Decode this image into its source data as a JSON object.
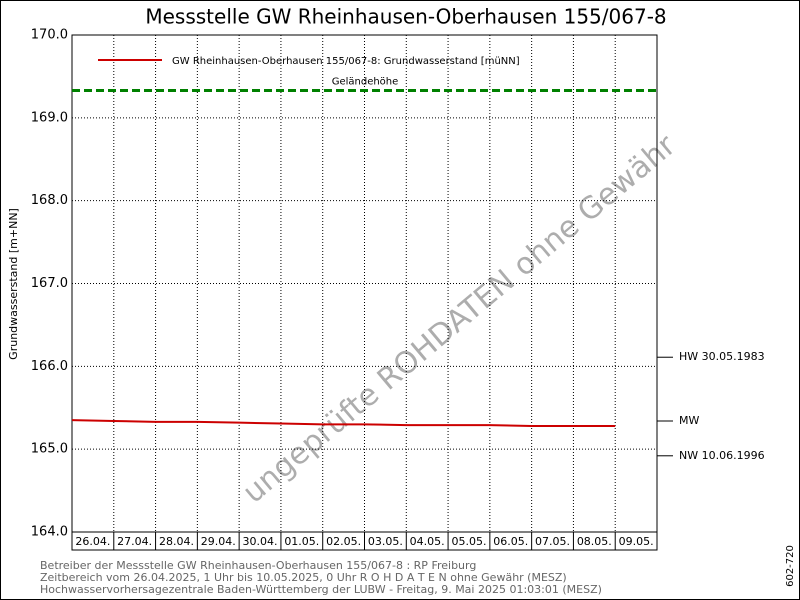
{
  "chart_data": {
    "type": "line",
    "title": "Messstelle GW Rheinhausen-Oberhausen 155/067-8",
    "y_label": "Grundwasserstand [m+NN]",
    "categories": [
      "26.04.",
      "27.04.",
      "28.04.",
      "29.04.",
      "30.04.",
      "01.05.",
      "02.05.",
      "03.05.",
      "04.05.",
      "05.05.",
      "06.05.",
      "07.05.",
      "08.05.",
      "09.05."
    ],
    "series": [
      {
        "name": "GW Rheinhausen-Oberhausen 155/067-8: Grundwasserstand  [müNN]",
        "color": "#cc0000",
        "values": [
          165.35,
          165.34,
          165.33,
          165.33,
          165.32,
          165.31,
          165.3,
          165.3,
          165.29,
          165.29,
          165.29,
          165.28,
          165.28,
          165.28
        ]
      }
    ],
    "reference_line": {
      "label": "Geländehöhe",
      "value": 169.33,
      "color": "#008000"
    },
    "markers": [
      {
        "label": "HW 30.05.1983",
        "value": 166.11
      },
      {
        "label": "MW",
        "value": 165.34
      },
      {
        "label": "NW 10.06.1996",
        "value": 164.92
      }
    ],
    "ylim": [
      164,
      170
    ],
    "yticks": [
      {
        "value": 164,
        "label": "164.0"
      },
      {
        "value": 165,
        "label": "165.0"
      },
      {
        "value": 166,
        "label": "166.0"
      },
      {
        "value": 167,
        "label": "167.0"
      },
      {
        "value": 168,
        "label": "168.0"
      },
      {
        "value": 169,
        "label": "169.0"
      },
      {
        "value": 170,
        "label": "170.0"
      }
    ],
    "grid": true,
    "watermark": "ungeprüfte ROHDATEN ohne Gewähr",
    "footer": [
      "Betreiber der Messstelle GW Rheinhausen-Oberhausen 155/067-8 : RP Freiburg",
      "Zeitbereich vom 26.04.2025, 1 Uhr bis 10.05.2025, 0 Uhr   R O H D A T E N ohne Gewähr (MESZ)",
      "Hochwasservorhersagezentrale Baden-Württemberg der LUBW - Freitag, 9. Mai 2025 01:03:01 (MESZ)"
    ],
    "side_code": "602-720"
  }
}
